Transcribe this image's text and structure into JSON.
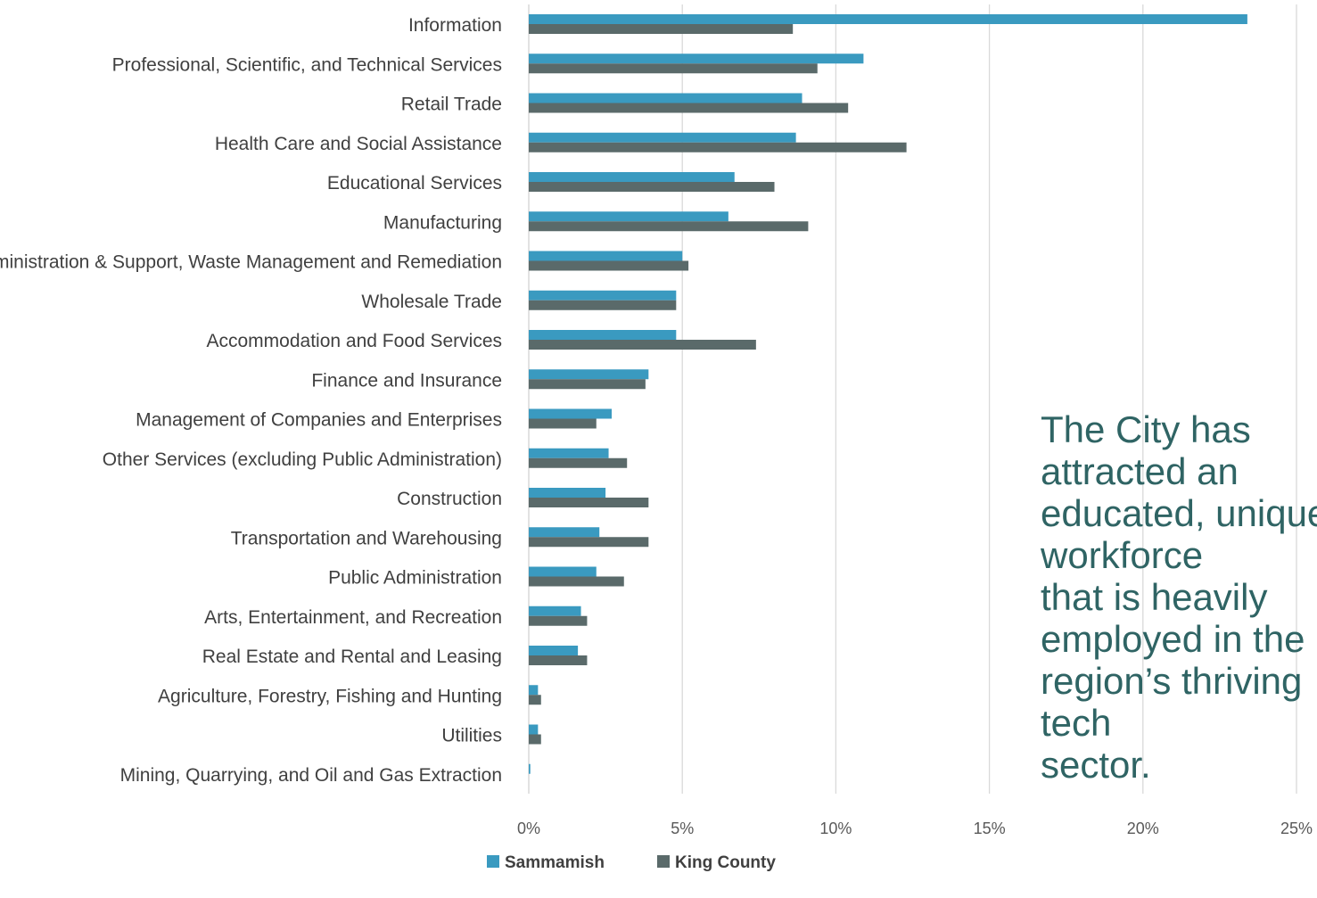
{
  "chart_data": {
    "type": "bar",
    "orientation": "horizontal",
    "categories": [
      "Information",
      "Professional, Scientific, and Technical Services",
      "Retail Trade",
      "Health Care and Social Assistance",
      "Educational Services",
      "Manufacturing",
      "Administration & Support, Waste Management and Remediation",
      "Wholesale Trade",
      "Accommodation and Food Services",
      "Finance and Insurance",
      "Management of Companies and Enterprises",
      "Other Services (excluding Public Administration)",
      "Construction",
      "Transportation and Warehousing",
      "Public Administration",
      "Arts, Entertainment, and Recreation",
      "Real Estate and Rental and Leasing",
      "Agriculture, Forestry, Fishing and Hunting",
      "Utilities",
      "Mining, Quarrying, and Oil and Gas Extraction"
    ],
    "series": [
      {
        "name": "Sammamish",
        "color": "#3a9ac0",
        "values": [
          23.4,
          10.9,
          8.9,
          8.7,
          6.7,
          6.5,
          5.0,
          4.8,
          4.8,
          3.9,
          2.7,
          2.6,
          2.5,
          2.3,
          2.2,
          1.7,
          1.6,
          0.3,
          0.3,
          0.05
        ]
      },
      {
        "name": "King County",
        "color": "#5a6a6a",
        "values": [
          8.6,
          9.4,
          10.4,
          12.3,
          8.0,
          9.1,
          5.2,
          4.8,
          7.4,
          3.8,
          2.2,
          3.2,
          3.9,
          3.9,
          3.1,
          1.9,
          1.9,
          0.4,
          0.4,
          0.0
        ]
      }
    ],
    "x_ticks": [
      "0%",
      "5%",
      "10%",
      "15%",
      "20%",
      "25%"
    ],
    "xlim": [
      0,
      25
    ],
    "grid": true,
    "legend": "bottom",
    "title": "",
    "xlabel": "",
    "ylabel": ""
  },
  "callout": {
    "text": "The City has attracted an\neducated, unique workforce\nthat is heavily employed in the\nregion’s thriving tech\nsector."
  }
}
